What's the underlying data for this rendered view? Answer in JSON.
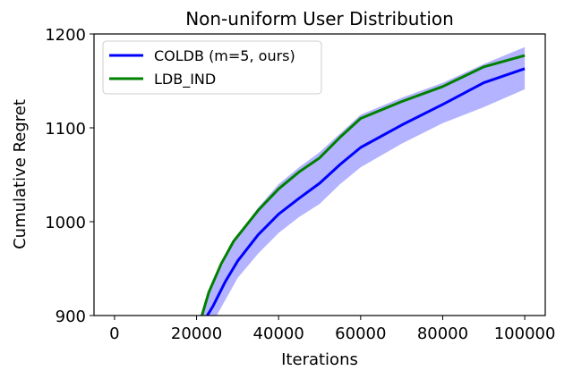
{
  "chart_data": {
    "type": "line",
    "title": "Non-uniform User Distribution",
    "xlabel": "Iterations",
    "ylabel": "Cumulative Regret",
    "xlim": [
      -5000,
      105000
    ],
    "ylim": [
      900,
      1200
    ],
    "xticks": [
      0,
      20000,
      40000,
      60000,
      80000,
      100000
    ],
    "xtick_labels": [
      "0",
      "20000",
      "40000",
      "60000",
      "80000",
      "100000"
    ],
    "yticks": [
      900,
      1000,
      1100,
      1200
    ],
    "ytick_labels": [
      "900",
      "1000",
      "1100",
      "1200"
    ],
    "grid": false,
    "legend_position": "upper left",
    "series": [
      {
        "name": "COLDB (m=5, ours)",
        "color": "#0000ff",
        "x": [
          22600,
          24000,
          27000,
          30000,
          35000,
          40000,
          45000,
          50000,
          55000,
          60000,
          70000,
          80000,
          90000,
          100000
        ],
        "values": [
          900,
          910,
          936,
          958,
          986,
          1008,
          1025,
          1041,
          1061,
          1079,
          1103,
          1125,
          1148,
          1163
        ],
        "band": {
          "color": "#b3b3ff",
          "x": [
            21000,
            24000,
            30000,
            35000,
            40000,
            45000,
            50000,
            55000,
            60000,
            70000,
            80000,
            90000,
            100000
          ],
          "lower": [
            870,
            893,
            940,
            966,
            988,
            1005,
            1019,
            1040,
            1058,
            1083,
            1105,
            1122,
            1141
          ],
          "upper": [
            900,
            935,
            985,
            1015,
            1040,
            1058,
            1074,
            1094,
            1114,
            1132,
            1148,
            1168,
            1186
          ]
        }
      },
      {
        "name": "LDB_IND",
        "color": "#008000",
        "x": [
          21300,
          23000,
          26000,
          29000,
          35000,
          40000,
          45000,
          50000,
          55000,
          60000,
          70000,
          80000,
          90000,
          100000
        ],
        "values": [
          900,
          925,
          955,
          979,
          1012,
          1035,
          1053,
          1068,
          1090,
          1110,
          1128,
          1144,
          1165,
          1177
        ]
      }
    ]
  }
}
